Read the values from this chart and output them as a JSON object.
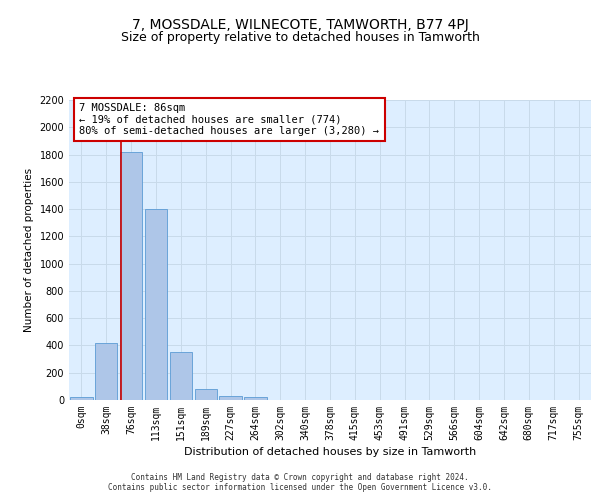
{
  "title": "7, MOSSDALE, WILNECOTE, TAMWORTH, B77 4PJ",
  "subtitle": "Size of property relative to detached houses in Tamworth",
  "xlabel": "Distribution of detached houses by size in Tamworth",
  "ylabel": "Number of detached properties",
  "bar_labels": [
    "0sqm",
    "38sqm",
    "76sqm",
    "113sqm",
    "151sqm",
    "189sqm",
    "227sqm",
    "264sqm",
    "302sqm",
    "340sqm",
    "378sqm",
    "415sqm",
    "453sqm",
    "491sqm",
    "529sqm",
    "566sqm",
    "604sqm",
    "642sqm",
    "680sqm",
    "717sqm",
    "755sqm"
  ],
  "bar_values": [
    20,
    420,
    1820,
    1400,
    350,
    80,
    30,
    20,
    0,
    0,
    0,
    0,
    0,
    0,
    0,
    0,
    0,
    0,
    0,
    0,
    0
  ],
  "bar_color": "#aec6e8",
  "bar_edge_color": "#5b9bd5",
  "property_line_x": 1.575,
  "annotation_text": "7 MOSSDALE: 86sqm\n← 19% of detached houses are smaller (774)\n80% of semi-detached houses are larger (3,280) →",
  "annotation_box_color": "#ffffff",
  "annotation_box_edge_color": "#cc0000",
  "ylim": [
    0,
    2200
  ],
  "yticks": [
    0,
    200,
    400,
    600,
    800,
    1000,
    1200,
    1400,
    1600,
    1800,
    2000,
    2200
  ],
  "grid_color": "#c8daea",
  "background_color": "#ddeeff",
  "footer_line1": "Contains HM Land Registry data © Crown copyright and database right 2024.",
  "footer_line2": "Contains public sector information licensed under the Open Government Licence v3.0.",
  "title_fontsize": 10,
  "subtitle_fontsize": 9,
  "axis_label_fontsize": 7.5,
  "tick_fontsize": 7,
  "annotation_fontsize": 7.5
}
